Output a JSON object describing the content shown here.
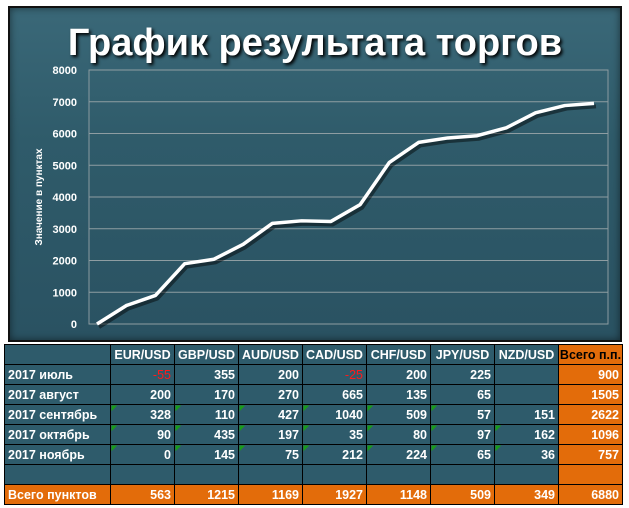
{
  "title": "График результата торгов",
  "chart_data": {
    "type": "line",
    "title": "График результата торгов",
    "ylabel": "Значение в пунктах",
    "xlabel": "",
    "ylim": [
      0,
      8000
    ],
    "yticks": [
      "0",
      "1000",
      "2000",
      "3000",
      "4000",
      "5000",
      "6000",
      "7000",
      "8000"
    ],
    "grid": true,
    "x": [
      1,
      2,
      3,
      4,
      5,
      6,
      7,
      8,
      9,
      10,
      11,
      12,
      13,
      14,
      15,
      16,
      17,
      18
    ],
    "values": [
      0,
      580,
      900,
      1900,
      2040,
      2510,
      3170,
      3250,
      3230,
      3760,
      5090,
      5720,
      5860,
      5930,
      6180,
      6650,
      6880,
      6950
    ],
    "color": "#ffffff"
  },
  "table": {
    "headers": [
      "",
      "EUR/USD",
      "GBP/USD",
      "AUD/USD",
      "CAD/USD",
      "CHF/USD",
      "JPY/USD",
      "NZD/USD",
      "Всего п.п."
    ],
    "rows": [
      [
        "2017 июль",
        "-55",
        "355",
        "200",
        "-25",
        "200",
        "225",
        "",
        "900"
      ],
      [
        "2017 август",
        "200",
        "170",
        "270",
        "665",
        "135",
        "65",
        "",
        "1505"
      ],
      [
        "2017 сентябрь",
        "328",
        "110",
        "427",
        "1040",
        "509",
        "57",
        "151",
        "2622"
      ],
      [
        "2017 октябрь",
        "90",
        "435",
        "197",
        "35",
        "80",
        "97",
        "162",
        "1096"
      ],
      [
        "2017 ноябрь",
        "0",
        "145",
        "75",
        "212",
        "224",
        "65",
        "36",
        "757"
      ],
      [
        "",
        "",
        "",
        "",
        "",
        "",
        "",
        "",
        ""
      ]
    ],
    "total": [
      "Всего пунктов",
      "563",
      "1215",
      "1169",
      "1927",
      "1148",
      "509",
      "349",
      "6880"
    ]
  }
}
